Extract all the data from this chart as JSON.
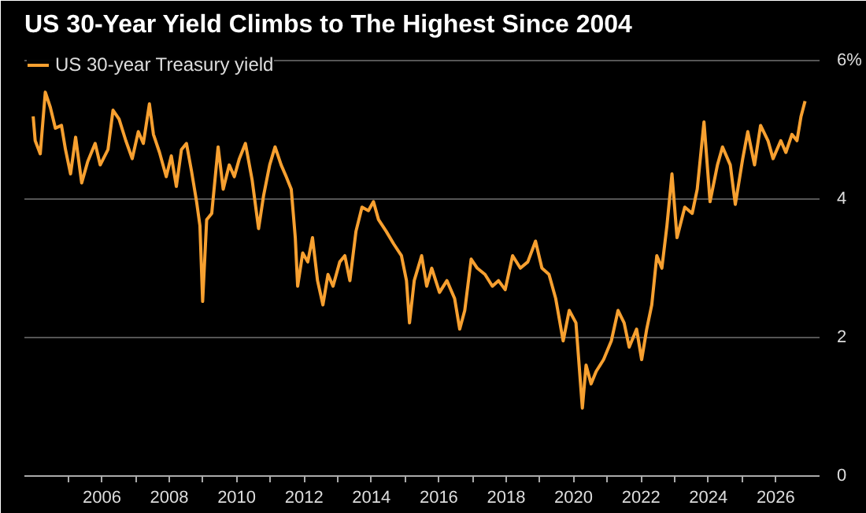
{
  "chart_data": {
    "type": "line",
    "title": "US 30-Year Yield Climbs to The Highest Since 2004",
    "x": [
      2003.96,
      2004.02,
      2004.17,
      2004.32,
      2004.47,
      2004.62,
      2004.8,
      2004.92,
      2005.07,
      2005.22,
      2005.4,
      2005.58,
      2005.8,
      2005.95,
      2006.18,
      2006.33,
      2006.51,
      2006.71,
      2006.9,
      2007.08,
      2007.23,
      2007.41,
      2007.53,
      2007.71,
      2007.91,
      2008.06,
      2008.21,
      2008.36,
      2008.51,
      2008.66,
      2008.81,
      2008.91,
      2008.99,
      2009.11,
      2009.26,
      2009.45,
      2009.6,
      2009.78,
      2009.93,
      2010.08,
      2010.26,
      2010.46,
      2010.65,
      2010.8,
      2010.98,
      2011.14,
      2011.32,
      2011.47,
      2011.62,
      2011.74,
      2011.81,
      2011.96,
      2012.11,
      2012.25,
      2012.4,
      2012.56,
      2012.71,
      2012.86,
      2013.06,
      2013.21,
      2013.36,
      2013.54,
      2013.72,
      2013.91,
      2014.06,
      2014.21,
      2014.44,
      2014.66,
      2014.89,
      2015.04,
      2015.13,
      2015.27,
      2015.49,
      2015.64,
      2015.79,
      2016.02,
      2016.24,
      2016.47,
      2016.62,
      2016.77,
      2016.96,
      2017.14,
      2017.37,
      2017.59,
      2017.77,
      2017.97,
      2018.19,
      2018.42,
      2018.64,
      2018.87,
      2019.06,
      2019.27,
      2019.47,
      2019.69,
      2019.87,
      2020.07,
      2020.26,
      2020.37,
      2020.52,
      2020.67,
      2020.89,
      2021.12,
      2021.32,
      2021.5,
      2021.65,
      2021.87,
      2022.02,
      2022.17,
      2022.32,
      2022.47,
      2022.62,
      2022.77,
      2022.92,
      2023.07,
      2023.3,
      2023.52,
      2023.67,
      2023.87,
      2024.05,
      2024.27,
      2024.42,
      2024.65,
      2024.8,
      2025.02,
      2025.17,
      2025.37,
      2025.55,
      2025.77,
      2025.92,
      2026.15,
      2026.3,
      2026.48,
      2026.63,
      2026.75,
      2026.87
    ],
    "series": [
      {
        "name": "US 30-year Treasury yield",
        "color": "#f7a030",
        "values": [
          5.19,
          4.84,
          4.65,
          5.54,
          5.32,
          5.02,
          5.06,
          4.71,
          4.36,
          4.89,
          4.23,
          4.54,
          4.8,
          4.49,
          4.71,
          5.28,
          5.15,
          4.84,
          4.58,
          4.97,
          4.8,
          5.37,
          4.93,
          4.67,
          4.32,
          4.62,
          4.18,
          4.71,
          4.8,
          4.4,
          3.96,
          3.61,
          2.52,
          3.7,
          3.79,
          4.75,
          4.14,
          4.49,
          4.32,
          4.58,
          4.8,
          4.27,
          3.57,
          4.05,
          4.49,
          4.75,
          4.49,
          4.32,
          4.14,
          3.44,
          2.74,
          3.22,
          3.09,
          3.44,
          2.82,
          2.47,
          2.91,
          2.74,
          3.09,
          3.18,
          2.82,
          3.53,
          3.88,
          3.83,
          3.96,
          3.7,
          3.53,
          3.35,
          3.18,
          2.82,
          2.21,
          2.82,
          3.18,
          2.74,
          3.0,
          2.65,
          2.82,
          2.56,
          2.12,
          2.39,
          3.13,
          3.0,
          2.91,
          2.74,
          2.82,
          2.69,
          3.18,
          3.0,
          3.09,
          3.39,
          3.0,
          2.91,
          2.56,
          1.95,
          2.39,
          2.21,
          0.98,
          1.6,
          1.33,
          1.51,
          1.68,
          1.95,
          2.39,
          2.21,
          1.86,
          2.12,
          1.68,
          2.12,
          2.47,
          3.18,
          3.0,
          3.61,
          4.36,
          3.44,
          3.88,
          3.79,
          4.14,
          5.11,
          3.96,
          4.49,
          4.75,
          4.49,
          3.92,
          4.58,
          4.97,
          4.49,
          5.06,
          4.84,
          4.58,
          4.84,
          4.67,
          4.93,
          4.84,
          5.19,
          5.41
        ]
      }
    ],
    "xlim": [
      2003.7,
      2027.3
    ],
    "xticks": [
      {
        "value": 2005,
        "label": null
      },
      2006,
      {
        "value": 2007,
        "label": null
      },
      2008,
      {
        "value": 2009,
        "label": null
      },
      2010,
      {
        "value": 2011,
        "label": null
      },
      2012,
      {
        "value": 2013,
        "label": null
      },
      2014,
      {
        "value": 2015,
        "label": null
      },
      2016,
      {
        "value": 2017,
        "label": null
      },
      2018,
      {
        "value": 2019,
        "label": null
      },
      2020,
      {
        "value": 2021,
        "label": null
      },
      2022,
      {
        "value": 2023,
        "label": null
      },
      2024,
      {
        "value": 2025,
        "label": null
      },
      2026
    ],
    "ylim": [
      0,
      6.2
    ],
    "yticks": [
      0,
      2,
      4,
      {
        "value": 6,
        "label": "6%"
      }
    ],
    "grid": "y",
    "legend": "top left",
    "marker": "none",
    "line_style": "solid"
  }
}
